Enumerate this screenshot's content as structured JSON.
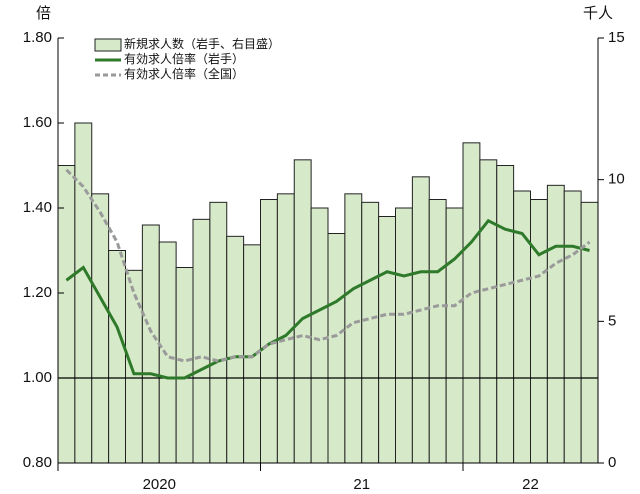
{
  "chart_data": {
    "type": "bar_line",
    "y_label": "倍",
    "y2_label": "千人",
    "categories": [
      "2020",
      null,
      null,
      null,
      null,
      null,
      null,
      null,
      null,
      null,
      null,
      null,
      "21",
      null,
      null,
      null,
      null,
      null,
      null,
      null,
      null,
      null,
      null,
      null,
      "22",
      null,
      null,
      null,
      null,
      null,
      null,
      null
    ],
    "series": [
      {
        "name": "新規求人数（岩手、右目盛）",
        "kind": "bar",
        "axis": "y2",
        "color": "#d6e9c9",
        "values": [
          10.5,
          12.0,
          9.5,
          7.5,
          6.8,
          8.4,
          7.8,
          6.9,
          8.6,
          9.2,
          8.0,
          7.7,
          9.3,
          9.5,
          10.7,
          9.0,
          8.1,
          9.5,
          9.2,
          8.7,
          9.0,
          10.1,
          9.3,
          9.0,
          11.3,
          10.7,
          10.5,
          9.6,
          9.3,
          9.8,
          9.6,
          9.2
        ]
      },
      {
        "name": "有効求人倍率（岩手）",
        "kind": "line",
        "color": "#2e7a2a",
        "values": [
          1.23,
          1.26,
          1.19,
          1.12,
          1.01,
          1.01,
          1.0,
          1.0,
          1.02,
          1.04,
          1.05,
          1.05,
          1.08,
          1.1,
          1.14,
          1.16,
          1.18,
          1.21,
          1.23,
          1.25,
          1.24,
          1.25,
          1.25,
          1.28,
          1.32,
          1.37,
          1.35,
          1.34,
          1.29,
          1.31,
          1.31,
          1.3
        ]
      },
      {
        "name": "有効求人倍率（全国）",
        "kind": "dashed",
        "color": "#9a9a9a",
        "values": [
          1.49,
          1.45,
          1.39,
          1.32,
          1.2,
          1.11,
          1.05,
          1.04,
          1.05,
          1.04,
          1.05,
          1.05,
          1.08,
          1.09,
          1.1,
          1.09,
          1.1,
          1.13,
          1.14,
          1.15,
          1.15,
          1.16,
          1.17,
          1.17,
          1.2,
          1.21,
          1.22,
          1.23,
          1.24,
          1.27,
          1.29,
          1.32
        ]
      }
    ],
    "ylim": [
      0.8,
      1.8
    ],
    "yticks": [
      {
        "value": 0.8,
        "label": "0.80"
      },
      {
        "value": 1.0,
        "label": "1.00"
      },
      {
        "value": 1.2,
        "label": "1.20"
      },
      {
        "value": 1.4,
        "label": "1.40"
      },
      {
        "value": 1.6,
        "label": "1.60"
      },
      {
        "value": 1.8,
        "label": "1.80"
      }
    ],
    "y2lim": [
      0,
      15
    ],
    "y2ticks": [
      0,
      5,
      10,
      15
    ],
    "reference_line": 1.0
  }
}
